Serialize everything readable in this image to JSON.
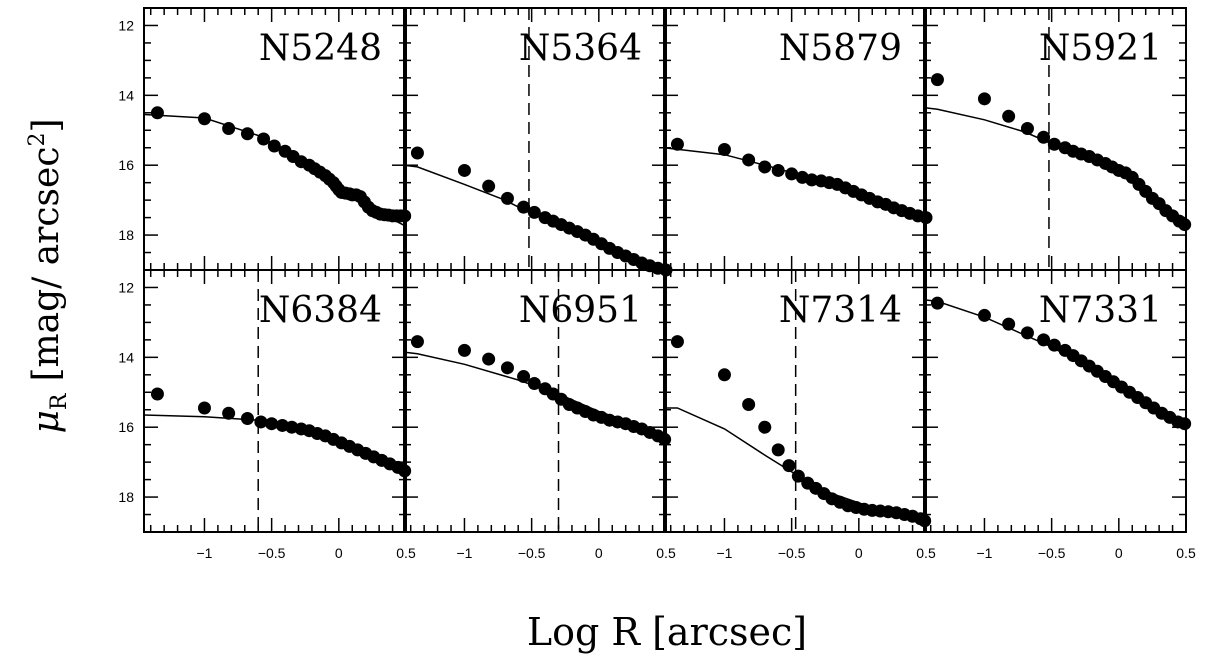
{
  "figure": {
    "ylabel_symbol": "μ",
    "ylabel_sub": "R",
    "ylabel_unit_open": "[mag/ arcsec",
    "ylabel_unit_sup": "2",
    "ylabel_unit_close": "]",
    "xlabel": "Log R [arcsec]",
    "colors": {
      "axes": "#000000",
      "points": "#000000",
      "model": "#000000",
      "background": "#ffffff"
    }
  },
  "chart_data": [
    {
      "type": "scatter",
      "panel": "N5248",
      "title": "N5248",
      "xlim": [
        -1.45,
        0.5
      ],
      "ylim": [
        19,
        11.5
      ],
      "vline": null,
      "xticks": [],
      "yticks": [
        "12",
        "14",
        "16",
        "18"
      ],
      "points": {
        "x": [
          -1.35,
          -1.0,
          -0.82,
          -0.68,
          -0.56,
          -0.48,
          -0.4,
          -0.34,
          -0.28,
          -0.22,
          -0.18,
          -0.14,
          -0.1,
          -0.07,
          -0.04,
          -0.02,
          0.0,
          0.02,
          0.05,
          0.08,
          0.1,
          0.13,
          0.16,
          0.19,
          0.22,
          0.25,
          0.28,
          0.31,
          0.34,
          0.37,
          0.4,
          0.43,
          0.46,
          0.49
        ],
        "y": [
          14.5,
          14.67,
          14.95,
          15.1,
          15.25,
          15.45,
          15.6,
          15.75,
          15.9,
          16.0,
          16.1,
          16.2,
          16.3,
          16.4,
          16.5,
          16.6,
          16.7,
          16.78,
          16.8,
          16.82,
          16.85,
          16.85,
          16.9,
          17.05,
          17.2,
          17.3,
          17.35,
          17.4,
          17.42,
          17.43,
          17.45,
          17.45,
          17.45,
          17.45
        ]
      },
      "model": {
        "x": [
          -1.45,
          -1.0,
          -0.6,
          -0.3,
          0.0,
          0.3,
          0.5
        ],
        "y": [
          14.55,
          14.65,
          15.15,
          15.8,
          16.65,
          17.35,
          17.75
        ]
      }
    },
    {
      "type": "scatter",
      "panel": "N5364",
      "title": "N5364",
      "xlim": [
        -1.45,
        0.5
      ],
      "ylim": [
        19,
        11.5
      ],
      "vline": -0.52,
      "xticks": [],
      "yticks": [],
      "points": {
        "x": [
          -1.35,
          -1.0,
          -0.82,
          -0.68,
          -0.56,
          -0.48,
          -0.4,
          -0.34,
          -0.28,
          -0.22,
          -0.16,
          -0.1,
          -0.04,
          0.02,
          0.08,
          0.14,
          0.2,
          0.26,
          0.32,
          0.38,
          0.44,
          0.5
        ],
        "y": [
          15.65,
          16.15,
          16.6,
          16.95,
          17.2,
          17.35,
          17.5,
          17.6,
          17.7,
          17.8,
          17.9,
          18.0,
          18.12,
          18.25,
          18.38,
          18.5,
          18.6,
          18.7,
          18.8,
          18.88,
          18.95,
          19.0
        ]
      },
      "model": {
        "x": [
          -1.45,
          -1.35,
          -1.0,
          -0.7,
          -0.52,
          -0.2,
          0.1,
          0.5
        ],
        "y": [
          16.0,
          16.05,
          16.55,
          17.0,
          17.35,
          17.85,
          18.35,
          19.05
        ]
      }
    },
    {
      "type": "scatter",
      "panel": "N5879",
      "title": "N5879",
      "xlim": [
        -1.45,
        0.5
      ],
      "ylim": [
        19,
        11.5
      ],
      "vline": null,
      "xticks": [],
      "yticks": [],
      "points": {
        "x": [
          -1.35,
          -1.0,
          -0.82,
          -0.7,
          -0.6,
          -0.5,
          -0.42,
          -0.35,
          -0.28,
          -0.22,
          -0.16,
          -0.1,
          -0.04,
          0.02,
          0.08,
          0.14,
          0.2,
          0.26,
          0.32,
          0.38,
          0.44,
          0.5
        ],
        "y": [
          15.4,
          15.55,
          15.85,
          16.05,
          16.15,
          16.25,
          16.35,
          16.42,
          16.45,
          16.5,
          16.55,
          16.65,
          16.75,
          16.85,
          16.95,
          17.05,
          17.12,
          17.22,
          17.3,
          17.38,
          17.45,
          17.5
        ]
      },
      "model": {
        "x": [
          -1.45,
          -1.0,
          -0.6,
          -0.3,
          0.0,
          0.5
        ],
        "y": [
          15.5,
          15.7,
          16.1,
          16.45,
          16.8,
          17.55
        ]
      }
    },
    {
      "type": "scatter",
      "panel": "N5921",
      "title": "N5921",
      "xlim": [
        -1.45,
        0.5
      ],
      "ylim": [
        19,
        11.5
      ],
      "vline": -0.52,
      "xticks": [],
      "yticks": [],
      "points": {
        "x": [
          -1.35,
          -1.0,
          -0.82,
          -0.68,
          -0.56,
          -0.48,
          -0.4,
          -0.34,
          -0.28,
          -0.22,
          -0.16,
          -0.1,
          -0.05,
          0.0,
          0.05,
          0.1,
          0.15,
          0.2,
          0.25,
          0.3,
          0.35,
          0.4,
          0.45,
          0.49
        ],
        "y": [
          13.55,
          14.1,
          14.6,
          14.95,
          15.2,
          15.4,
          15.5,
          15.6,
          15.68,
          15.75,
          15.85,
          15.95,
          16.05,
          16.15,
          16.22,
          16.35,
          16.55,
          16.75,
          16.95,
          17.1,
          17.3,
          17.45,
          17.6,
          17.7
        ]
      },
      "model": {
        "x": [
          -1.45,
          -1.35,
          -1.0,
          -0.7,
          -0.52,
          -0.2,
          0.1,
          0.49
        ],
        "y": [
          14.35,
          14.4,
          14.7,
          15.05,
          15.35,
          15.8,
          16.3,
          17.7
        ]
      }
    },
    {
      "type": "scatter",
      "panel": "N6384",
      "title": "N6384",
      "xlim": [
        -1.45,
        0.5
      ],
      "ylim": [
        19,
        11.5
      ],
      "vline": -0.6,
      "xticks": [
        "-1",
        "-0.5",
        "0",
        "0.5"
      ],
      "yticks": [
        "12",
        "14",
        "16",
        "18"
      ],
      "points": {
        "x": [
          -1.35,
          -1.0,
          -0.82,
          -0.68,
          -0.58,
          -0.5,
          -0.42,
          -0.35,
          -0.28,
          -0.22,
          -0.16,
          -0.1,
          -0.04,
          0.02,
          0.08,
          0.14,
          0.2,
          0.26,
          0.32,
          0.38,
          0.44,
          0.49
        ],
        "y": [
          15.05,
          15.45,
          15.6,
          15.75,
          15.85,
          15.9,
          15.95,
          16.0,
          16.05,
          16.1,
          16.18,
          16.25,
          16.35,
          16.45,
          16.55,
          16.65,
          16.75,
          16.85,
          16.95,
          17.05,
          17.15,
          17.25
        ]
      },
      "model": {
        "x": [
          -1.45,
          -1.0,
          -0.6,
          -0.3,
          0.0,
          0.3,
          0.49
        ],
        "y": [
          15.65,
          15.7,
          15.8,
          16.05,
          16.45,
          16.9,
          17.3
        ]
      }
    },
    {
      "type": "scatter",
      "panel": "N6951",
      "title": "N6951",
      "xlim": [
        -1.45,
        0.5
      ],
      "ylim": [
        19,
        11.5
      ],
      "vline": -0.3,
      "xticks": [
        "-1",
        "-0.5",
        "0",
        "0.5"
      ],
      "yticks": [],
      "points": {
        "x": [
          -1.35,
          -1.0,
          -0.82,
          -0.68,
          -0.56,
          -0.48,
          -0.4,
          -0.34,
          -0.28,
          -0.22,
          -0.16,
          -0.1,
          -0.04,
          0.02,
          0.08,
          0.14,
          0.2,
          0.26,
          0.32,
          0.38,
          0.44,
          0.49
        ],
        "y": [
          13.55,
          13.8,
          14.05,
          14.3,
          14.55,
          14.75,
          14.9,
          15.05,
          15.2,
          15.35,
          15.45,
          15.55,
          15.65,
          15.72,
          15.8,
          15.85,
          15.9,
          15.98,
          16.05,
          16.15,
          16.25,
          16.35
        ]
      },
      "model": {
        "x": [
          -1.45,
          -1.35,
          -1.0,
          -0.6,
          -0.3,
          0.0,
          0.3,
          0.49
        ],
        "y": [
          13.85,
          13.9,
          14.2,
          14.65,
          15.05,
          15.55,
          15.95,
          16.35
        ]
      }
    },
    {
      "type": "scatter",
      "panel": "N7314",
      "title": "N7314",
      "xlim": [
        -1.45,
        0.5
      ],
      "ylim": [
        19,
        11.5
      ],
      "vline": -0.47,
      "xticks": [
        "-1",
        "-0.5",
        "0",
        "0.5"
      ],
      "yticks": [],
      "points": {
        "x": [
          -1.35,
          -1.0,
          -0.82,
          -0.7,
          -0.6,
          -0.52,
          -0.45,
          -0.38,
          -0.32,
          -0.26,
          -0.2,
          -0.14,
          -0.08,
          -0.02,
          0.04,
          0.1,
          0.16,
          0.22,
          0.28,
          0.34,
          0.4,
          0.46,
          0.49
        ],
        "y": [
          13.55,
          14.5,
          15.35,
          16.0,
          16.65,
          17.1,
          17.4,
          17.6,
          17.75,
          17.9,
          18.05,
          18.15,
          18.25,
          18.3,
          18.35,
          18.38,
          18.4,
          18.42,
          18.45,
          18.5,
          18.55,
          18.62,
          18.68
        ]
      },
      "model": {
        "x": [
          -1.45,
          -1.35,
          -1.0,
          -0.7,
          -0.47,
          -0.2,
          0.1,
          0.49
        ],
        "y": [
          15.45,
          15.45,
          16.05,
          16.8,
          17.35,
          17.9,
          18.3,
          18.7
        ]
      }
    },
    {
      "type": "scatter",
      "panel": "N7331",
      "title": "N7331",
      "xlim": [
        -1.45,
        0.5
      ],
      "ylim": [
        19,
        11.5
      ],
      "vline": null,
      "xticks": [
        "-1",
        "-0.5",
        "0",
        "0.5"
      ],
      "yticks": [],
      "points": {
        "x": [
          -1.35,
          -1.0,
          -0.82,
          -0.68,
          -0.56,
          -0.48,
          -0.4,
          -0.34,
          -0.28,
          -0.22,
          -0.16,
          -0.1,
          -0.04,
          0.02,
          0.08,
          0.14,
          0.2,
          0.26,
          0.32,
          0.38,
          0.44,
          0.49
        ],
        "y": [
          12.45,
          12.8,
          13.05,
          13.3,
          13.5,
          13.65,
          13.8,
          13.95,
          14.1,
          14.25,
          14.4,
          14.55,
          14.7,
          14.85,
          15.0,
          15.15,
          15.3,
          15.45,
          15.6,
          15.72,
          15.85,
          15.9
        ]
      },
      "model": {
        "x": [
          -1.45,
          -1.35,
          -1.0,
          -0.5,
          0.0,
          0.49
        ],
        "y": [
          12.35,
          12.4,
          12.85,
          13.7,
          14.8,
          15.95
        ]
      }
    }
  ]
}
